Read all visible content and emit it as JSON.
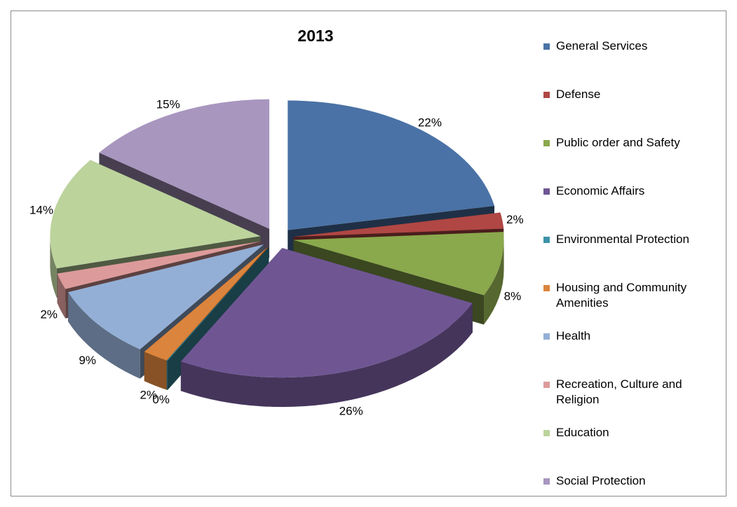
{
  "chart_data": {
    "type": "pie",
    "title": "2013",
    "categories": [
      "General Services",
      "Defense",
      "Public order and Safety",
      "Economic Affairs",
      "Environmental Protection",
      "Housing and Community Amenities",
      "Health",
      "Recreation, Culture and Religion",
      "Education",
      "Social Protection"
    ],
    "values": [
      22,
      2,
      8,
      26,
      0,
      2,
      9,
      2,
      14,
      15
    ],
    "data_labels": [
      "22%",
      "2%",
      "8%",
      "26%",
      "0%",
      "2%",
      "9%",
      "2%",
      "14%",
      "15%"
    ],
    "colors": [
      "#4a72a6",
      "#b04744",
      "#8aa84c",
      "#6f5693",
      "#3c93a6",
      "#db843d",
      "#94afd6",
      "#dc9b9a",
      "#bcd39c",
      "#a896bf"
    ],
    "style": "3d-exploded",
    "legend_position": "right"
  }
}
